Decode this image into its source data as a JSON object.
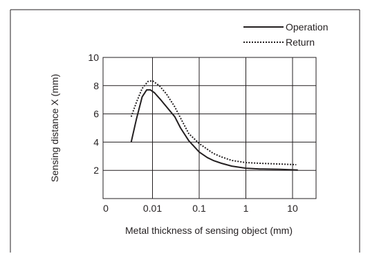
{
  "chart_data": {
    "type": "line",
    "title": "",
    "xlabel": "Metal thickness of sensing object (mm)",
    "ylabel": "Sensing distance X (mm)",
    "x_scale": "log",
    "x_ticks": [
      "0",
      "0.01",
      "0.1",
      "1",
      "10"
    ],
    "y_ticks": [
      "2",
      "4",
      "6",
      "8",
      "10"
    ],
    "ylim": [
      0,
      10
    ],
    "grid": true,
    "legend": "top-right",
    "series": [
      {
        "name": "Operation",
        "style": "solid",
        "color": "#231f20",
        "points": [
          [
            0.0035,
            4.0
          ],
          [
            0.0045,
            5.6
          ],
          [
            0.006,
            7.2
          ],
          [
            0.0075,
            7.7
          ],
          [
            0.009,
            7.7
          ],
          [
            0.011,
            7.5
          ],
          [
            0.015,
            7.0
          ],
          [
            0.02,
            6.5
          ],
          [
            0.03,
            5.8
          ],
          [
            0.04,
            5.0
          ],
          [
            0.06,
            4.1
          ],
          [
            0.1,
            3.3
          ],
          [
            0.15,
            2.9
          ],
          [
            0.2,
            2.7
          ],
          [
            0.3,
            2.5
          ],
          [
            0.5,
            2.3
          ],
          [
            1,
            2.15
          ],
          [
            2,
            2.1
          ],
          [
            5,
            2.08
          ],
          [
            13,
            2.02
          ]
        ]
      },
      {
        "name": "Return",
        "style": "dotted",
        "color": "#231f20",
        "points": [
          [
            0.0035,
            5.8
          ],
          [
            0.0045,
            6.8
          ],
          [
            0.006,
            7.8
          ],
          [
            0.008,
            8.3
          ],
          [
            0.01,
            8.35
          ],
          [
            0.014,
            8.0
          ],
          [
            0.02,
            7.4
          ],
          [
            0.03,
            6.5
          ],
          [
            0.04,
            5.7
          ],
          [
            0.06,
            4.6
          ],
          [
            0.1,
            3.9
          ],
          [
            0.2,
            3.2
          ],
          [
            0.3,
            2.95
          ],
          [
            0.5,
            2.7
          ],
          [
            1,
            2.55
          ],
          [
            2,
            2.5
          ],
          [
            5,
            2.45
          ],
          [
            12,
            2.4
          ]
        ]
      }
    ]
  }
}
